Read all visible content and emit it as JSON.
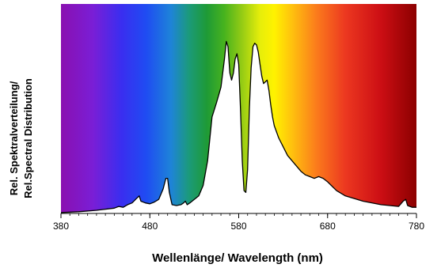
{
  "chart_data": {
    "type": "area",
    "title": "",
    "xlabel": "Wellenlänge/ Wavelength (nm)",
    "ylabel_line1": "Rel. Spektralverteilung/",
    "ylabel_line2": "Rel.Spectral Distribution",
    "xlim": [
      380,
      780
    ],
    "ylim": [
      0,
      1
    ],
    "xticks": [
      380,
      480,
      580,
      680,
      780
    ],
    "xtick_labels": [
      "380",
      "480",
      "580",
      "680",
      "780"
    ],
    "background": "visible spectrum gradient (violet to dark red)",
    "fill_color": "#ffffff",
    "line_color": "#000000",
    "series": [
      {
        "x": [
          380,
          400,
          420,
          440,
          445,
          450,
          455,
          460,
          465,
          468,
          470,
          475,
          480,
          485,
          490,
          495,
          498,
          500,
          502,
          505,
          510,
          515,
          518,
          520,
          522,
          525,
          530,
          535,
          540,
          545,
          550,
          555,
          560,
          564,
          566,
          568,
          570,
          572,
          574,
          576,
          578,
          580,
          582,
          584,
          586,
          588,
          590,
          592,
          594,
          596,
          598,
          600,
          602,
          604,
          606,
          608,
          610,
          612,
          614,
          616,
          618,
          620,
          625,
          630,
          635,
          640,
          645,
          650,
          655,
          660,
          665,
          670,
          675,
          680,
          690,
          700,
          720,
          740,
          760,
          765,
          768,
          770,
          775,
          780
        ],
        "y": [
          0.005,
          0.01,
          0.018,
          0.03,
          0.04,
          0.035,
          0.05,
          0.06,
          0.085,
          0.1,
          0.07,
          0.06,
          0.055,
          0.065,
          0.08,
          0.14,
          0.2,
          0.2,
          0.12,
          0.05,
          0.045,
          0.05,
          0.06,
          0.07,
          0.05,
          0.06,
          0.08,
          0.1,
          0.16,
          0.3,
          0.55,
          0.63,
          0.72,
          0.88,
          0.98,
          0.95,
          0.8,
          0.76,
          0.8,
          0.88,
          0.91,
          0.85,
          0.6,
          0.3,
          0.13,
          0.12,
          0.25,
          0.6,
          0.83,
          0.95,
          0.97,
          0.96,
          0.92,
          0.85,
          0.78,
          0.74,
          0.75,
          0.76,
          0.7,
          0.62,
          0.55,
          0.5,
          0.43,
          0.38,
          0.33,
          0.3,
          0.27,
          0.24,
          0.22,
          0.21,
          0.2,
          0.21,
          0.2,
          0.18,
          0.13,
          0.1,
          0.07,
          0.05,
          0.04,
          0.07,
          0.08,
          0.045,
          0.035,
          0.035
        ]
      }
    ]
  }
}
